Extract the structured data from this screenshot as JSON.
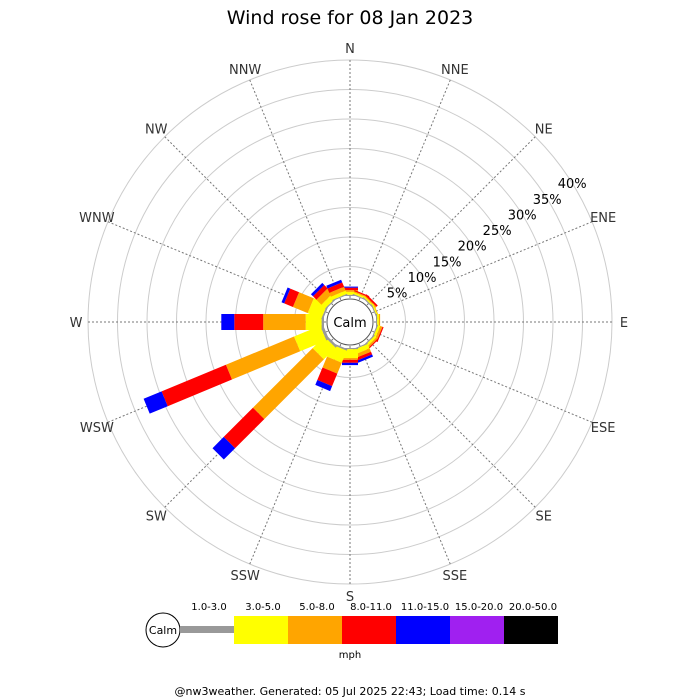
{
  "chart_data": {
    "type": "windrose",
    "title": "Wind rose for 08 Jan 2023",
    "directions": [
      "N",
      "NNE",
      "NE",
      "ENE",
      "E",
      "ESE",
      "SE",
      "SSE",
      "S",
      "SSW",
      "SW",
      "WSW",
      "W",
      "WNW",
      "NW",
      "NNW"
    ],
    "radial_ticks": [
      "5%",
      "10%",
      "15%",
      "20%",
      "25%",
      "30%",
      "35%",
      "40%"
    ],
    "radial_max": 40,
    "calm_label": "Calm",
    "speed_unit": "mph",
    "speed_bins": [
      {
        "label": "1.0-3.0",
        "color": "#999999"
      },
      {
        "label": "3.0-5.0",
        "color": "#ffff00"
      },
      {
        "label": "5.0-8.0",
        "color": "#ffa500"
      },
      {
        "label": "8.0-11.0",
        "color": "#ff0000"
      },
      {
        "label": "11.0-15.0",
        "color": "#0000ff"
      },
      {
        "label": "15.0-20.0",
        "color": "#a020f0"
      },
      {
        "label": "20.0-50.0",
        "color": "#000000"
      }
    ],
    "series": [
      {
        "dir": "N",
        "values": [
          0.2,
          0.5,
          0.3,
          0.4,
          0.2,
          0,
          0
        ]
      },
      {
        "dir": "NNE",
        "values": [
          0.2,
          0.3,
          0.2,
          0.2,
          0,
          0,
          0
        ]
      },
      {
        "dir": "NE",
        "values": [
          0.2,
          0.2,
          0.2,
          0.3,
          0,
          0,
          0
        ]
      },
      {
        "dir": "ENE",
        "values": [
          0.2,
          0.2,
          0.1,
          0,
          0,
          0,
          0
        ]
      },
      {
        "dir": "E",
        "values": [
          0.2,
          0.3,
          0.2,
          0,
          0,
          0,
          0
        ]
      },
      {
        "dir": "ESE",
        "values": [
          0.2,
          0.4,
          0.4,
          0.2,
          0,
          0,
          0
        ]
      },
      {
        "dir": "SE",
        "values": [
          0.2,
          0.4,
          0.3,
          0.2,
          0,
          0,
          0
        ]
      },
      {
        "dir": "SSE",
        "values": [
          0.2,
          0.8,
          0.6,
          0.5,
          0.4,
          0,
          0
        ]
      },
      {
        "dir": "S",
        "values": [
          0.2,
          1.5,
          0.3,
          0.5,
          0.4,
          0,
          0
        ]
      },
      {
        "dir": "SSW",
        "values": [
          0.3,
          2.2,
          2.0,
          2.3,
          0.9,
          0,
          0
        ]
      },
      {
        "dir": "SW",
        "values": [
          0.4,
          2.8,
          14.3,
          7.0,
          2.7,
          0,
          0
        ]
      },
      {
        "dir": "WSW",
        "values": [
          0.5,
          4.8,
          12.5,
          11.8,
          3.3,
          0,
          0
        ]
      },
      {
        "dir": "W",
        "values": [
          0.4,
          2.7,
          7.2,
          4.9,
          2.2,
          0,
          0
        ]
      },
      {
        "dir": "WNW",
        "values": [
          0.3,
          2.5,
          2.7,
          1.6,
          0.5,
          0,
          0
        ]
      },
      {
        "dir": "NW",
        "values": [
          0.2,
          0.9,
          1.2,
          0.8,
          0.5,
          0,
          0
        ]
      },
      {
        "dir": "NNW",
        "values": [
          0.2,
          0.6,
          0.7,
          0.8,
          0.5,
          0,
          0
        ]
      }
    ],
    "footer": "@nw3weather. Generated: 05 Jul 2025 22:43; Load time: 0.14 s"
  }
}
